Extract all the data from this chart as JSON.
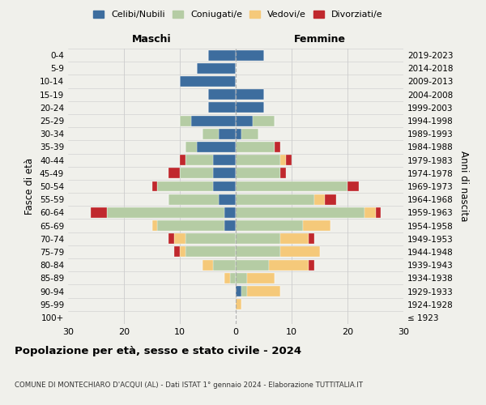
{
  "age_groups": [
    "100+",
    "95-99",
    "90-94",
    "85-89",
    "80-84",
    "75-79",
    "70-74",
    "65-69",
    "60-64",
    "55-59",
    "50-54",
    "45-49",
    "40-44",
    "35-39",
    "30-34",
    "25-29",
    "20-24",
    "15-19",
    "10-14",
    "5-9",
    "0-4"
  ],
  "birth_years": [
    "≤ 1923",
    "1924-1928",
    "1929-1933",
    "1934-1938",
    "1939-1943",
    "1944-1948",
    "1949-1953",
    "1954-1958",
    "1959-1963",
    "1964-1968",
    "1969-1973",
    "1974-1978",
    "1979-1983",
    "1984-1988",
    "1989-1993",
    "1994-1998",
    "1999-2003",
    "2004-2008",
    "2009-2013",
    "2014-2018",
    "2019-2023"
  ],
  "male": {
    "celibi": [
      0,
      0,
      0,
      0,
      0,
      0,
      0,
      2,
      2,
      3,
      4,
      4,
      4,
      7,
      3,
      8,
      5,
      5,
      10,
      7,
      5
    ],
    "coniugati": [
      0,
      0,
      0,
      1,
      4,
      9,
      9,
      12,
      21,
      9,
      10,
      6,
      5,
      2,
      3,
      2,
      0,
      0,
      0,
      0,
      0
    ],
    "vedovi": [
      0,
      0,
      0,
      1,
      2,
      1,
      2,
      1,
      0,
      0,
      0,
      0,
      0,
      0,
      0,
      0,
      0,
      0,
      0,
      0,
      0
    ],
    "divorziati": [
      0,
      0,
      0,
      0,
      0,
      1,
      1,
      0,
      3,
      0,
      1,
      2,
      1,
      0,
      0,
      0,
      0,
      0,
      0,
      0,
      0
    ]
  },
  "female": {
    "nubili": [
      0,
      0,
      1,
      0,
      0,
      0,
      0,
      0,
      0,
      0,
      0,
      0,
      0,
      0,
      1,
      3,
      5,
      5,
      0,
      0,
      5
    ],
    "coniugate": [
      0,
      0,
      1,
      2,
      6,
      8,
      8,
      12,
      23,
      14,
      20,
      8,
      8,
      7,
      3,
      4,
      0,
      0,
      0,
      0,
      0
    ],
    "vedove": [
      0,
      1,
      6,
      5,
      7,
      7,
      5,
      5,
      2,
      2,
      0,
      0,
      1,
      0,
      0,
      0,
      0,
      0,
      0,
      0,
      0
    ],
    "divorziate": [
      0,
      0,
      0,
      0,
      1,
      0,
      1,
      0,
      1,
      2,
      2,
      1,
      1,
      1,
      0,
      0,
      0,
      0,
      0,
      0,
      0
    ]
  },
  "colors": {
    "celibi": "#3d6d9e",
    "coniugati": "#b5cca4",
    "vedovi": "#f5c97a",
    "divorziati": "#c0282d"
  },
  "xlim": 30,
  "title": "Popolazione per età, sesso e stato civile - 2024",
  "subtitle": "COMUNE DI MONTECHIARO D'ACQUI (AL) - Dati ISTAT 1° gennaio 2024 - Elaborazione TUTTITALIA.IT",
  "ylabel_left": "Fasce di età",
  "ylabel_right": "Anni di nascita",
  "xlabel_male": "Maschi",
  "xlabel_female": "Femmine",
  "bg_color": "#f0f0eb"
}
